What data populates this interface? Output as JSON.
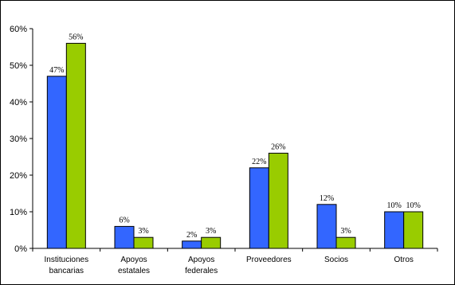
{
  "chart_data": {
    "type": "bar",
    "categories": [
      [
        "Instituciones",
        "bancarias"
      ],
      [
        "Apoyos",
        "estatales"
      ],
      [
        "Apoyos",
        "federales"
      ],
      [
        "Proveedores"
      ],
      [
        "Socios"
      ],
      [
        "Otros"
      ]
    ],
    "series": [
      {
        "values": [
          47,
          6,
          2,
          22,
          12,
          10
        ],
        "labels": [
          "47%",
          "6%",
          "2%",
          "22%",
          "12%",
          "10%"
        ],
        "color": "#3366ff"
      },
      {
        "values": [
          56,
          3,
          3,
          26,
          3,
          10
        ],
        "labels": [
          "56%",
          "3%",
          "3%",
          "26%",
          "3%",
          "10%"
        ],
        "color": "#99cc00"
      }
    ],
    "ylim": [
      0,
      60
    ],
    "yticks": [
      "0%",
      "10%",
      "20%",
      "30%",
      "40%",
      "50%",
      "60%"
    ],
    "title": "",
    "xlabel": "",
    "ylabel": "",
    "grid": false,
    "legend": "none"
  }
}
